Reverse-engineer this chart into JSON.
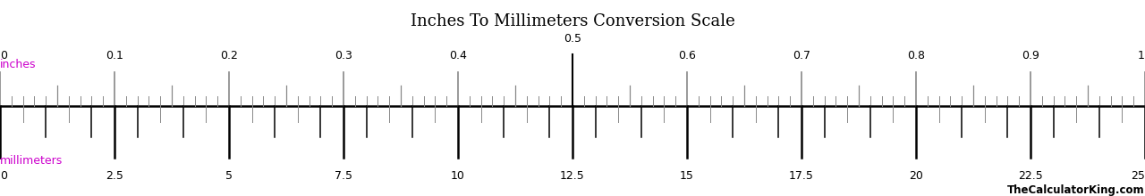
{
  "title": "Inches To Millimeters Conversion Scale",
  "title_fontsize": 13,
  "background_color": "#ffffff",
  "inches_label": "inches",
  "mm_label": "millimeters",
  "label_color": "#cc00cc",
  "inches_major_ticks": [
    0,
    0.1,
    0.2,
    0.3,
    0.4,
    0.5,
    0.6,
    0.7,
    0.8,
    0.9,
    1.0
  ],
  "mm_major_ticks": [
    0,
    2.5,
    5,
    7.5,
    10,
    12.5,
    15,
    17.5,
    20,
    22.5,
    25
  ],
  "watermark": "TheCalculatorKing.com",
  "ruler_line_color": "#000000",
  "tick_color_major": "#000000",
  "tick_color_minor": "#888888"
}
